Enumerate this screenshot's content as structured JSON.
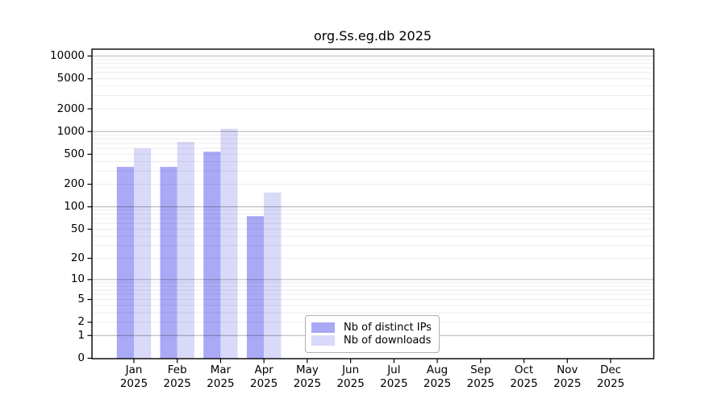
{
  "chart_data": {
    "type": "bar",
    "title": "org.Ss.eg.db 2025",
    "scale": "log10(value+1)",
    "categories": [
      "Jan",
      "Feb",
      "Mar",
      "Apr",
      "May",
      "Jun",
      "Jul",
      "Aug",
      "Sep",
      "Oct",
      "Nov",
      "Dec"
    ],
    "x_sublabel_year": "2025",
    "series": [
      {
        "name": "Nb of distinct IPs",
        "color": "#a9a9f6",
        "values": [
          340,
          340,
          540,
          75,
          null,
          null,
          null,
          null,
          null,
          null,
          null,
          null
        ]
      },
      {
        "name": "Nb of downloads",
        "color": "#d9d9f9",
        "values": [
          600,
          730,
          1090,
          155,
          null,
          null,
          null,
          null,
          null,
          null,
          null,
          null
        ]
      }
    ],
    "y_ticks": [
      0,
      1,
      2,
      5,
      10,
      20,
      50,
      100,
      200,
      500,
      1000,
      2000,
      5000,
      10000
    ],
    "ylim": [
      0,
      12300
    ],
    "xlabel": "",
    "ylabel": "",
    "grid": "horizontal, log minor lines light + decade lines dark",
    "legend_position": "inside plot, bottom center"
  }
}
